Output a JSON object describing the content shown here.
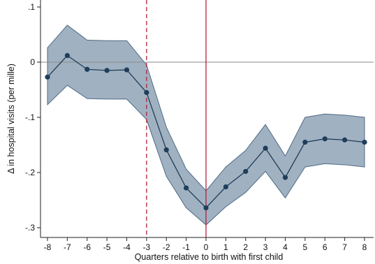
{
  "chart_data": {
    "type": "line",
    "title": "",
    "xlabel": "Quarters relative to birth with first child",
    "ylabel": "Δ in hospital visits (per mille)",
    "x": [
      -8,
      -7,
      -6,
      -5,
      -4,
      -3,
      -2,
      -1,
      0,
      1,
      2,
      3,
      4,
      5,
      6,
      7,
      8
    ],
    "series": [
      {
        "values": [
          -0.027,
          0.012,
          -0.013,
          -0.015,
          -0.014,
          -0.055,
          -0.159,
          -0.228,
          -0.264,
          -0.226,
          -0.198,
          -0.156,
          -0.209,
          -0.145,
          -0.139,
          -0.141,
          -0.145
        ],
        "ci_lower": [
          -0.077,
          -0.042,
          -0.066,
          -0.067,
          -0.067,
          -0.104,
          -0.207,
          -0.264,
          -0.295,
          -0.262,
          -0.236,
          -0.198,
          -0.246,
          -0.19,
          -0.184,
          -0.186,
          -0.19
        ],
        "ci_upper": [
          0.026,
          0.067,
          0.04,
          0.039,
          0.039,
          -0.005,
          -0.118,
          -0.194,
          -0.233,
          -0.19,
          -0.16,
          -0.113,
          -0.17,
          -0.1,
          -0.094,
          -0.096,
          -0.1
        ]
      }
    ],
    "xlim": [
      -8,
      8
    ],
    "ylim": [
      -0.3,
      0.1
    ],
    "xticks": [
      "-8",
      "-7",
      "-6",
      "-5",
      "-4",
      "-3",
      "-2",
      "-1",
      "0",
      "1",
      "2",
      "3",
      "4",
      "5",
      "6",
      "7",
      "8"
    ],
    "yticks": [
      {
        "value": -0.3,
        "label": "-.3"
      },
      {
        "value": -0.2,
        "label": "-.2"
      },
      {
        "value": -0.1,
        "label": "-.1"
      },
      {
        "value": 0,
        "label": "0"
      },
      {
        "value": 0.1,
        "label": ".1"
      }
    ],
    "reference_lines": {
      "horizontal_at": 0,
      "vertical_dashed_at": -3,
      "vertical_solid_at": 0
    },
    "grid": false,
    "legend": "none",
    "colors": {
      "line": "#1f3e5a",
      "marker": "#1f3e5a",
      "band_fill": "#8fa3b6",
      "band_edge": "#4f6a85",
      "zero_line": "#8a8a8a",
      "ref_line": "#b0223d",
      "axis": "#222222"
    }
  }
}
